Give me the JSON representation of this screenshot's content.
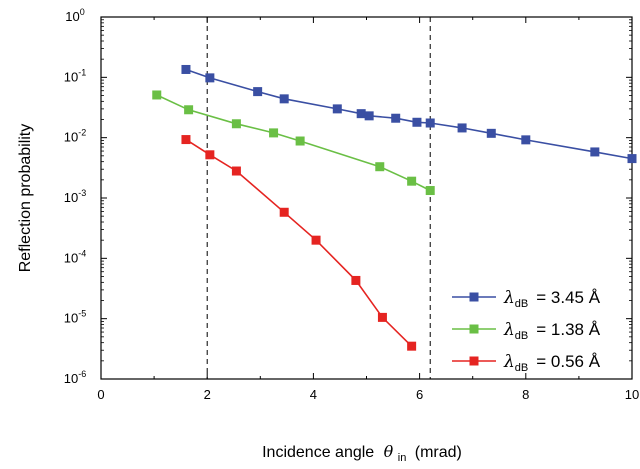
{
  "chart_data": {
    "type": "line",
    "xlabel": "Incidence angle",
    "xlabel_symbol": "θ",
    "xlabel_symbol_sub": "in",
    "xlabel_unit": "(mrad)",
    "ylabel": "Reflection probability",
    "xlim": [
      0,
      10
    ],
    "ylim": [
      1e-06,
      1
    ],
    "yscale": "log",
    "x_ticks": [
      "0",
      "2",
      "4",
      "6",
      "8",
      "10"
    ],
    "y_ticks": [
      {
        "base": "10",
        "exp": "-6"
      },
      {
        "base": "10",
        "exp": "-5"
      },
      {
        "base": "10",
        "exp": "-4"
      },
      {
        "base": "10",
        "exp": "-3"
      },
      {
        "base": "10",
        "exp": "-2"
      },
      {
        "base": "10",
        "exp": "-1"
      },
      {
        "base": "10",
        "exp": "0"
      }
    ],
    "vlines": [
      2.0,
      6.2
    ],
    "grid": false,
    "legend_position": "lower-right",
    "series": [
      {
        "name_symbol": "λ",
        "name_sub": "dB",
        "name_value": "= 3.45 Å",
        "color": "#3a4fa3",
        "x": [
          1.6,
          2.05,
          2.95,
          3.45,
          4.45,
          4.9,
          5.05,
          5.55,
          5.95,
          6.2,
          6.8,
          7.35,
          8.0,
          9.3,
          10.0
        ],
        "y": [
          0.135,
          0.098,
          0.058,
          0.044,
          0.03,
          0.025,
          0.023,
          0.021,
          0.018,
          0.0175,
          0.0145,
          0.0118,
          0.0092,
          0.0058,
          0.0045
        ]
      },
      {
        "name_symbol": "λ",
        "name_sub": "dB",
        "name_value": "= 1.38 Å",
        "color": "#6abf45",
        "x": [
          1.05,
          1.65,
          2.55,
          3.25,
          3.75,
          5.25,
          5.85,
          6.2
        ],
        "y": [
          0.051,
          0.029,
          0.017,
          0.012,
          0.0088,
          0.0033,
          0.0019,
          0.00133
        ]
      },
      {
        "name_symbol": "λ",
        "name_sub": "dB",
        "name_value": "= 0.56 Å",
        "color": "#e52421",
        "x": [
          1.6,
          2.05,
          2.55,
          3.45,
          4.05,
          4.8,
          5.3,
          5.85
        ],
        "y": [
          0.0093,
          0.0052,
          0.0028,
          0.00058,
          0.0002,
          4.3e-05,
          1.05e-05,
          3.5e-06
        ]
      }
    ]
  }
}
